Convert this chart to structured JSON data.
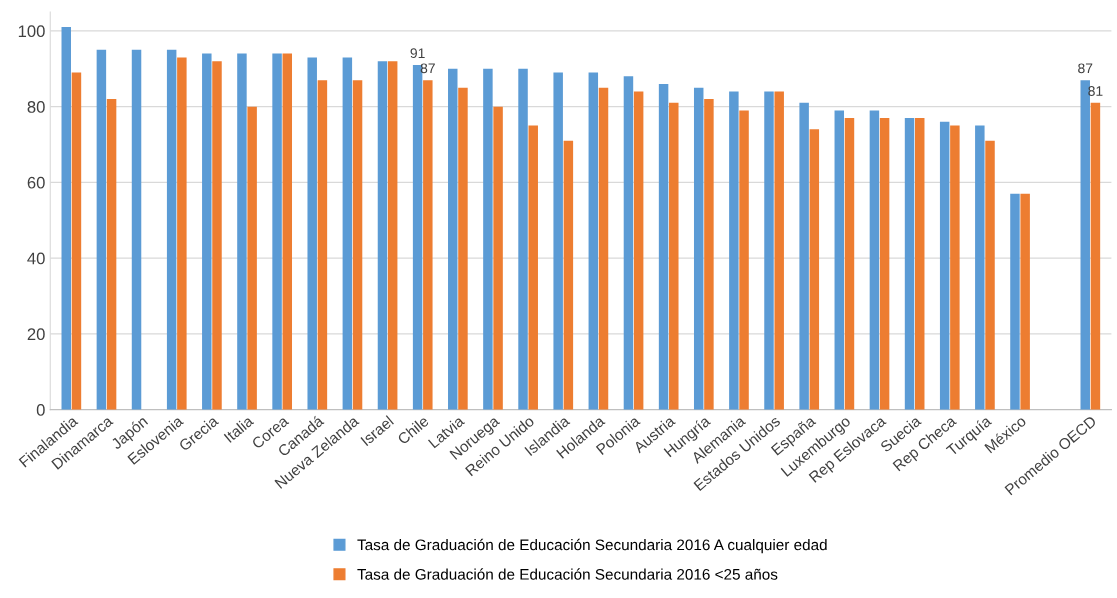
{
  "chart_data": {
    "type": "bar",
    "categories": [
      "Finalandia",
      "Dinamarca",
      "Japón",
      "Eslovenia",
      "Grecia",
      "Italia",
      "Corea",
      "Canadá",
      "Nueva Zelanda",
      "Israel",
      "Chile",
      "Latvia",
      "Noruega",
      "Reino Unido",
      "Islandia",
      "Holanda",
      "Polonia",
      "Austria",
      "Hungría",
      "Alemania",
      "Estados Unidos",
      "España",
      "Luxemburgo",
      "Rep Eslovaca",
      "Suecia",
      "Rep Checa",
      "Turquía",
      "México",
      null,
      "Promedio OECD"
    ],
    "series": [
      {
        "name": "Tasa de Graduación de Educación Secundaria 2016 A cualquier edad",
        "color": "#5b9bd5",
        "values": [
          101,
          95,
          95,
          95,
          94,
          94,
          94,
          93,
          93,
          92,
          91,
          90,
          90,
          90,
          89,
          89,
          88,
          86,
          85,
          84,
          84,
          81,
          79,
          79,
          77,
          76,
          75,
          57,
          null,
          87
        ],
        "value_labels": [
          null,
          null,
          null,
          null,
          null,
          null,
          null,
          null,
          null,
          null,
          "91",
          null,
          null,
          null,
          null,
          null,
          null,
          null,
          null,
          null,
          null,
          null,
          null,
          null,
          null,
          null,
          null,
          null,
          null,
          "87"
        ]
      },
      {
        "name": "Tasa de Graduación de Educación Secundaria 2016 <25 años",
        "color": "#ed7d31",
        "values": [
          89,
          82,
          null,
          93,
          92,
          80,
          94,
          87,
          87,
          92,
          87,
          85,
          80,
          75,
          71,
          85,
          84,
          81,
          82,
          79,
          84,
          74,
          77,
          77,
          77,
          75,
          71,
          57,
          null,
          81
        ],
        "value_labels": [
          null,
          null,
          null,
          null,
          null,
          null,
          null,
          null,
          null,
          null,
          "87",
          null,
          null,
          null,
          null,
          null,
          null,
          null,
          null,
          null,
          null,
          null,
          null,
          null,
          null,
          null,
          null,
          null,
          null,
          "81"
        ]
      }
    ],
    "ylim": [
      0,
      105
    ],
    "yticks": [
      0,
      20,
      40,
      60,
      80,
      100
    ],
    "grid": "y",
    "legend": "bottom"
  }
}
